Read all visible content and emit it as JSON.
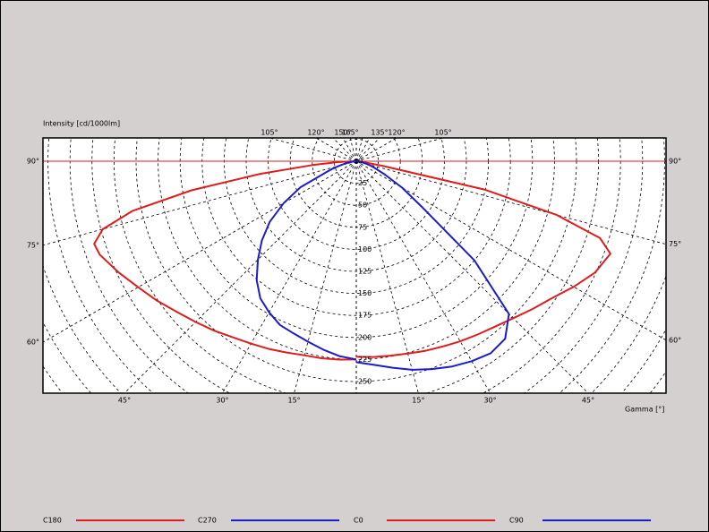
{
  "chart_data": {
    "type": "polar",
    "y_label": "Intensity [cd/1000lm]",
    "x_label": "Gamma [°]",
    "x": [
      0,
      5,
      10,
      15,
      20,
      25,
      30,
      35,
      40,
      45,
      50,
      55,
      60,
      65,
      70,
      72.5,
      75,
      77.5,
      80,
      82.5,
      85,
      87.5,
      90
    ],
    "series": [
      {
        "name": "C180",
        "color": "#e01c1c",
        "side": "left",
        "values": [
          225,
          226,
          227,
          228,
          231,
          235,
          239,
          244,
          251,
          258,
          266,
          276,
          286,
          298,
          310,
          312,
          298,
          260,
          190,
          110,
          50,
          20,
          0
        ]
      },
      {
        "name": "C270",
        "color": "#1c1cc8",
        "side": "left",
        "values": [
          225,
          222,
          217,
          212,
          208,
          205,
          198,
          190,
          176,
          158,
          140,
          120,
          95,
          70,
          36,
          28,
          20,
          14,
          9,
          5,
          3,
          1,
          0
        ]
      },
      {
        "name": "C0",
        "color": "#e01c1c",
        "side": "right",
        "values": [
          222,
          223,
          224,
          226,
          229,
          232,
          236,
          240,
          245,
          252,
          261,
          271,
          285,
          299,
          307,
          290,
          235,
          150,
          30,
          10,
          5,
          2,
          0
        ]
      },
      {
        "name": "C90",
        "color": "#1c1cc8",
        "side": "right",
        "values": [
          228,
          232,
          238,
          245,
          251,
          257,
          262,
          266,
          263,
          245,
          175,
          92,
          60,
          36,
          22,
          17,
          13,
          9,
          6,
          4,
          2,
          1,
          0
        ]
      }
    ],
    "rticks": [
      0,
      25,
      50,
      75,
      100,
      125,
      150,
      175,
      200,
      225,
      250
    ],
    "left_gamma_ticks": [
      {
        "value": 15,
        "label": "15°"
      },
      {
        "value": 30,
        "label": "30°"
      },
      {
        "value": 45,
        "label": "45°"
      },
      {
        "value": 60,
        "label": "60°"
      },
      {
        "value": 75,
        "label": "75°"
      },
      {
        "value": 90,
        "label": "90°"
      },
      {
        "value": 105,
        "label": "105°"
      },
      {
        "value": 120,
        "label": "120°"
      },
      {
        "value": 150,
        "label": "150°"
      },
      {
        "value": 165,
        "label": "165°"
      }
    ],
    "right_gamma_ticks": [
      {
        "value": 15,
        "label": "15°"
      },
      {
        "value": 30,
        "label": "30°"
      },
      {
        "value": 45,
        "label": "45°"
      },
      {
        "value": 60,
        "label": "60°"
      },
      {
        "value": 75,
        "label": "75°"
      },
      {
        "value": 90,
        "label": "90°"
      },
      {
        "value": 105,
        "label": "105°"
      },
      {
        "value": 120,
        "label": "120°"
      },
      {
        "value": 135,
        "label": "135°"
      }
    ]
  }
}
